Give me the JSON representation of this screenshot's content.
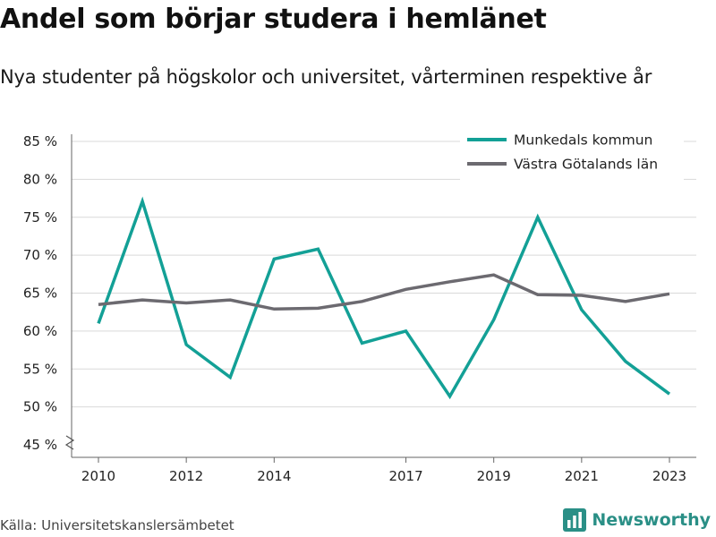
{
  "title": "Andel som börjar studera i hemlänet",
  "subtitle": "Nya studenter på högskolor och universitet, vårterminen respektive år",
  "source": "Källa: Universitetskanslersämbetet",
  "brand": {
    "name": "Newsworthy",
    "icon": "bar-chart-logo-icon",
    "color": "#2a8f86"
  },
  "chart_data": {
    "type": "line",
    "x": [
      2010,
      2011,
      2012,
      2013,
      2014,
      2015,
      2016,
      2017,
      2018,
      2019,
      2020,
      2021,
      2022,
      2023
    ],
    "x_tick_labels": [
      "2010",
      "2012",
      "2014",
      "2017",
      "2019",
      "2021",
      "2023"
    ],
    "y_tick_labels": [
      "45 %",
      "50 %",
      "55 %",
      "60 %",
      "65 %",
      "70 %",
      "75 %",
      "80 %",
      "85 %"
    ],
    "ylim": [
      45,
      85
    ],
    "y_axis_break": true,
    "grid": true,
    "legend_position": "top-right",
    "series": [
      {
        "name": "Munkedals kommun",
        "color": "#13a096",
        "values": [
          61.0,
          77.1,
          58.2,
          53.9,
          69.5,
          70.8,
          58.4,
          60.0,
          51.4,
          61.5,
          75.0,
          62.8,
          56.0,
          51.7
        ]
      },
      {
        "name": "Västra Götalands län",
        "color": "#6c6a70",
        "values": [
          63.5,
          64.1,
          63.7,
          64.1,
          62.9,
          63.0,
          63.9,
          65.5,
          66.5,
          67.4,
          64.8,
          64.7,
          63.9,
          64.9
        ]
      }
    ]
  }
}
